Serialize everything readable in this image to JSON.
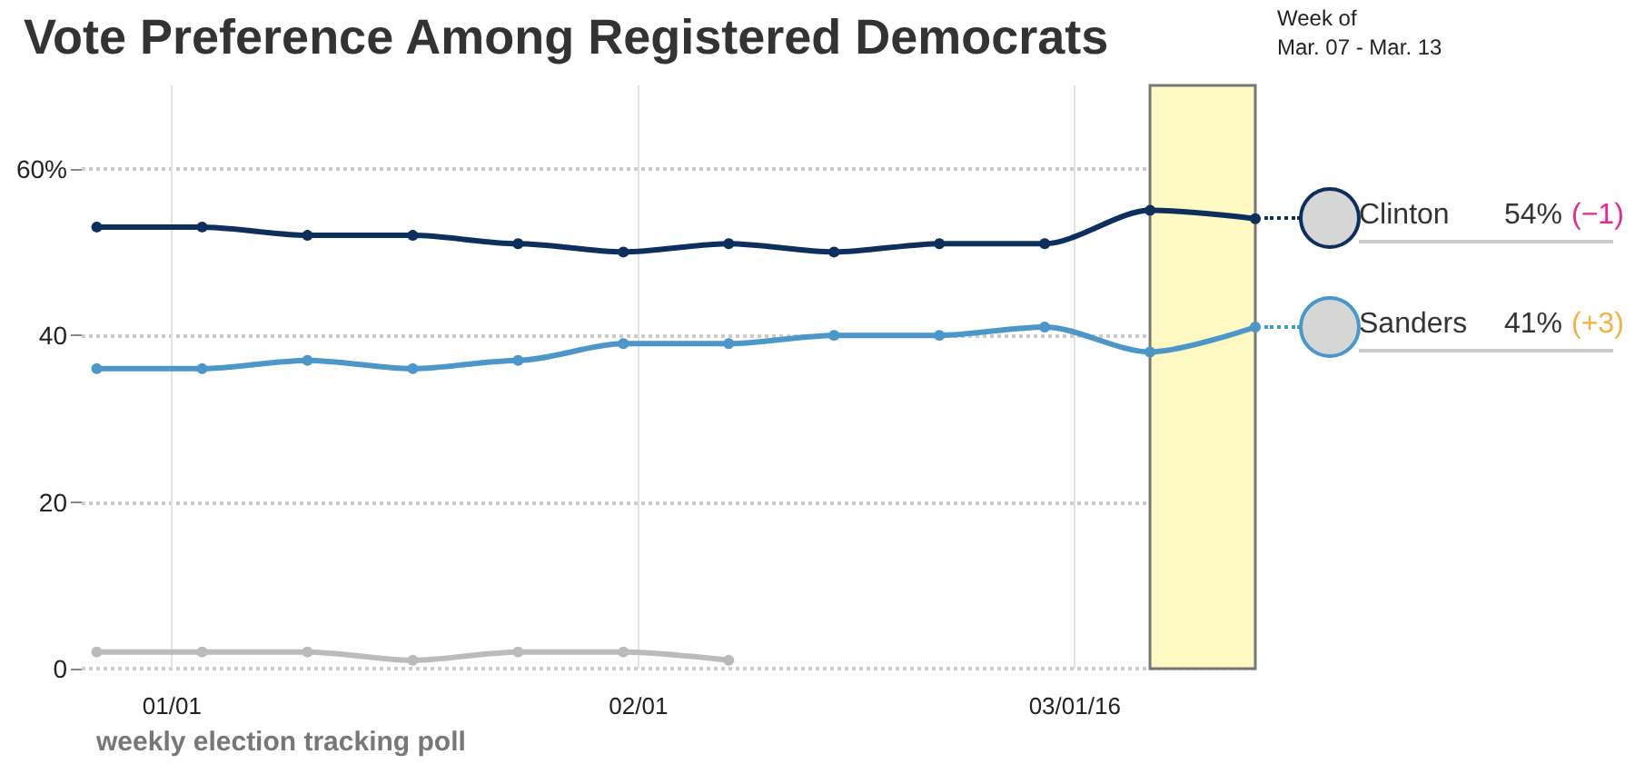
{
  "chart_data": {
    "type": "line",
    "title": "Vote Preference Among Registered Democrats",
    "x": [
      "2015-12-27",
      "2016-01-03",
      "2016-01-10",
      "2016-01-17",
      "2016-01-24",
      "2016-01-31",
      "2016-02-07",
      "2016-02-14",
      "2016-02-21",
      "2016-02-28",
      "2016-03-06",
      "2016-03-13"
    ],
    "series": [
      {
        "name": "Clinton",
        "color": "#0d2f5e",
        "values": [
          53,
          53,
          52,
          52,
          51,
          50,
          51,
          50,
          51,
          51,
          55,
          54
        ]
      },
      {
        "name": "Sanders",
        "color": "#4b97c9",
        "values": [
          36,
          36,
          37,
          36,
          37,
          39,
          39,
          40,
          40,
          41,
          38,
          41
        ]
      },
      {
        "color": "#bbbbbb",
        "values": [
          2,
          2,
          2,
          1,
          2,
          2,
          1,
          null,
          null,
          null,
          null,
          null
        ]
      }
    ],
    "xlim": [
      "2015-12-26",
      "2016-03-13"
    ],
    "xticks": [
      {
        "value": "2016-01-01",
        "label": "01/01"
      },
      {
        "value": "2016-02-01",
        "label": "02/01"
      },
      {
        "value": "2016-03-01",
        "label": "03/01/16"
      }
    ],
    "ylim": [
      0,
      70
    ],
    "yticks": [
      0,
      20,
      40,
      {
        "value": 60,
        "label": "60%"
      }
    ],
    "grid": true,
    "marker": "circle",
    "line_style": "solid",
    "legend": "right",
    "bands": [
      {
        "axis": "x",
        "from": "2016-03-06",
        "to": "2016-03-13",
        "label": "Week of\nMar. 07 - Mar. 13",
        "color": "#fff9c4"
      }
    ],
    "annotations": [
      "54%",
      "(−1)",
      "41%",
      "(+3)",
      "weekly election tracking poll"
    ]
  }
}
